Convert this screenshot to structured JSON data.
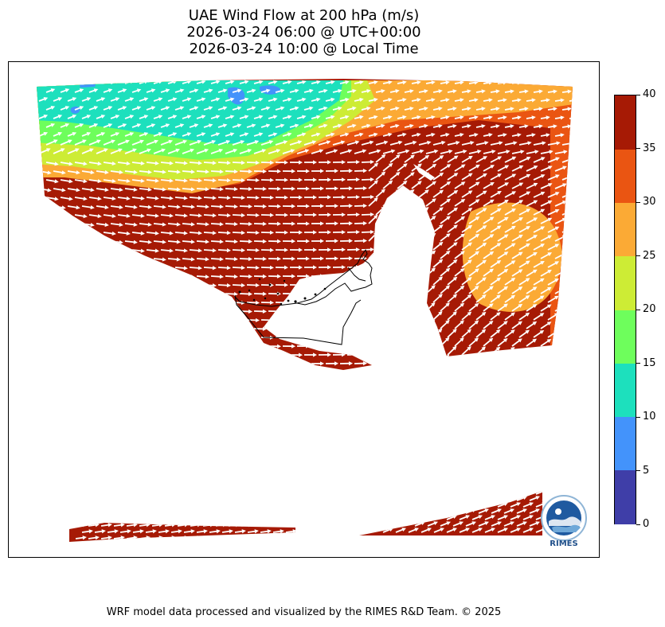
{
  "title": {
    "line1": "UAE Wind Flow at 200 hPa (m/s)",
    "line2": "2026-03-24 06:00 @ UTC+00:00",
    "line3": "2026-03-24 10:00 @ Local Time"
  },
  "colorbar": {
    "min": 0,
    "max": 40,
    "labels": [
      "0",
      "5",
      "10",
      "15",
      "20",
      "25",
      "30",
      "35",
      "40"
    ],
    "colors": [
      "#3f3ea8",
      "#4393fb",
      "#1de0bd",
      "#6efe5c",
      "#cdec35",
      "#fbaa35",
      "#ea5512",
      "#a61a05"
    ]
  },
  "logo": {
    "text": "RIMES"
  },
  "footer": "WRF model data processed and visualized by the RIMES R&D Team. © 2025"
}
